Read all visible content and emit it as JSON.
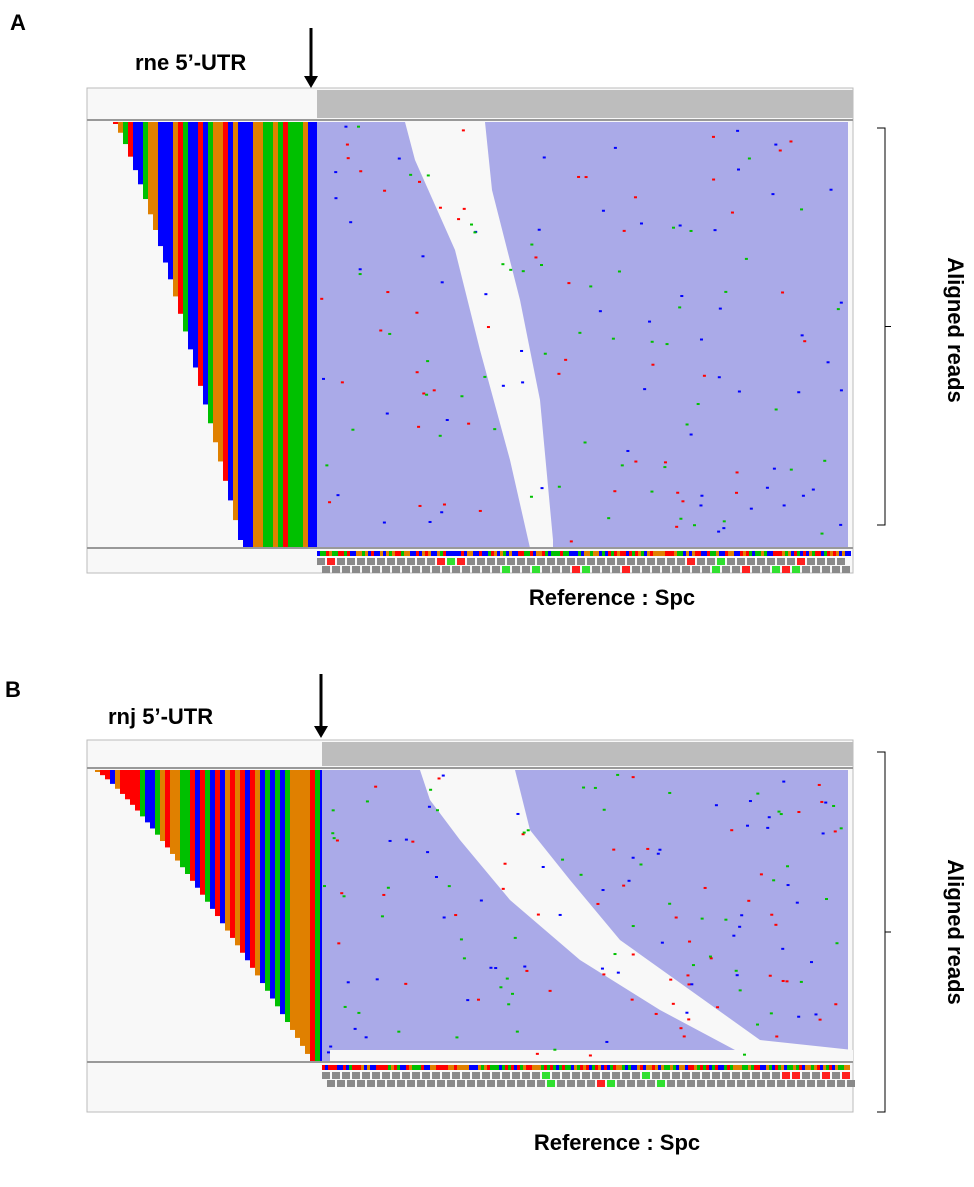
{
  "panels": [
    {
      "label": "A",
      "gene_label": "rne 5’-UTR",
      "side_label": "Aligned reads",
      "reference_label": "Reference : Spc"
    },
    {
      "label": "B",
      "gene_label": "rnj 5’-UTR",
      "side_label": "Aligned reads",
      "reference_label": "Reference : Spc"
    }
  ]
}
